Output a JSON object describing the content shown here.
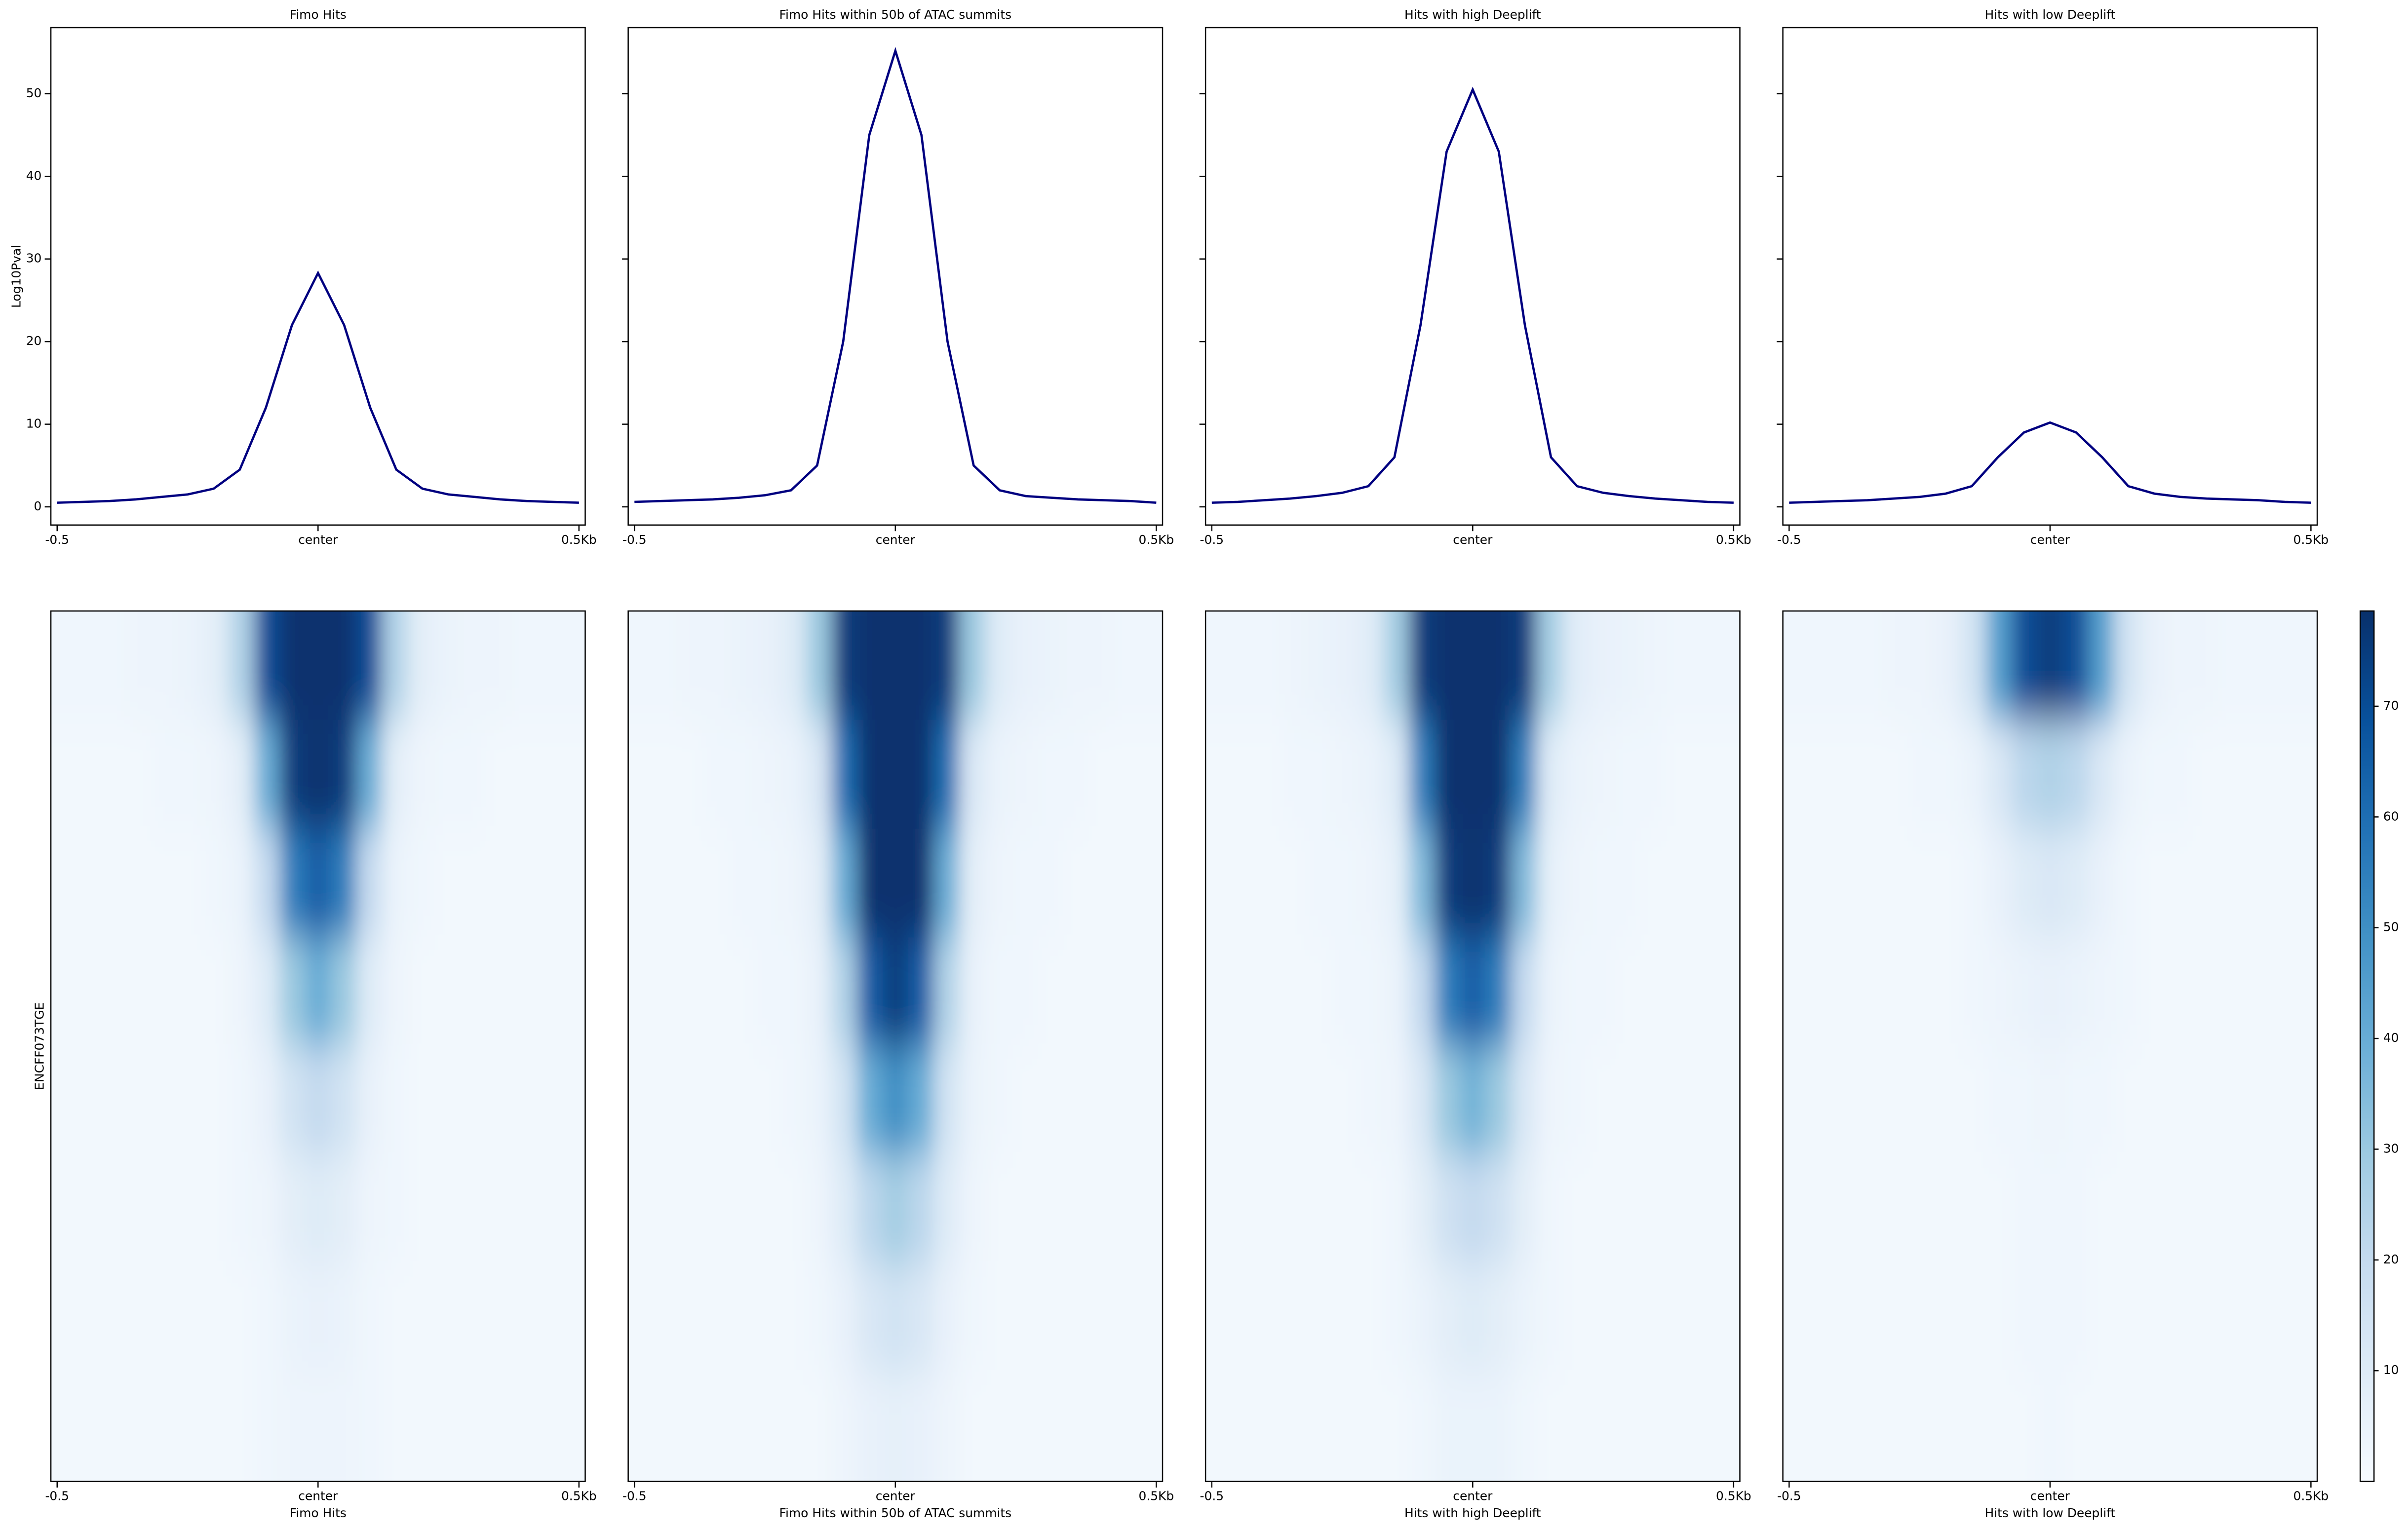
{
  "chart_data": [
    {
      "type": "line",
      "title": "Fimo Hits",
      "ylabel": "Log10Pval",
      "color": "#000080",
      "x": [
        -500,
        -450,
        -400,
        -350,
        -300,
        -250,
        -200,
        -150,
        -100,
        -50,
        0,
        50,
        100,
        150,
        200,
        250,
        300,
        350,
        400,
        450,
        500
      ],
      "values": [
        0.5,
        0.6,
        0.7,
        0.9,
        1.2,
        1.5,
        2.2,
        4.5,
        12,
        22,
        28.3,
        22,
        12,
        4.5,
        2.2,
        1.5,
        1.2,
        0.9,
        0.7,
        0.6,
        0.5
      ],
      "xlim": [
        -512,
        512
      ],
      "xticks": [
        {
          "value": -500,
          "label": "-0.5"
        },
        {
          "value": 0,
          "label": "center"
        },
        {
          "value": 500,
          "label": "0.5Kb"
        }
      ],
      "ylim": [
        -2.2,
        58
      ],
      "yticks": [
        0,
        10,
        20,
        30,
        40,
        50
      ]
    },
    {
      "type": "line",
      "title": "Fimo Hits within 50b of ATAC summits",
      "color": "#000080",
      "x": [
        -500,
        -450,
        -400,
        -350,
        -300,
        -250,
        -200,
        -150,
        -100,
        -50,
        0,
        50,
        100,
        150,
        200,
        250,
        300,
        350,
        400,
        450,
        500
      ],
      "values": [
        0.6,
        0.7,
        0.8,
        0.9,
        1.1,
        1.4,
        2.0,
        5,
        20,
        45,
        55.2,
        45,
        20,
        5,
        2.0,
        1.3,
        1.1,
        0.9,
        0.8,
        0.7,
        0.5
      ],
      "xlim": [
        -512,
        512
      ],
      "xticks": [
        {
          "value": -500,
          "label": "-0.5"
        },
        {
          "value": 0,
          "label": "center"
        },
        {
          "value": 500,
          "label": "0.5Kb"
        }
      ],
      "ylim": [
        -2.2,
        58
      ],
      "yticks": [
        0,
        10,
        20,
        30,
        40,
        50
      ]
    },
    {
      "type": "line",
      "title": "Hits with high Deeplift",
      "color": "#000080",
      "x": [
        -500,
        -450,
        -400,
        -350,
        -300,
        -250,
        -200,
        -150,
        -100,
        -50,
        0,
        50,
        100,
        150,
        200,
        250,
        300,
        350,
        400,
        450,
        500
      ],
      "values": [
        0.5,
        0.6,
        0.8,
        1.0,
        1.3,
        1.7,
        2.5,
        6,
        22,
        43,
        50.5,
        43,
        22,
        6,
        2.5,
        1.7,
        1.3,
        1.0,
        0.8,
        0.6,
        0.5
      ],
      "xlim": [
        -512,
        512
      ],
      "xticks": [
        {
          "value": -500,
          "label": "-0.5"
        },
        {
          "value": 0,
          "label": "center"
        },
        {
          "value": 500,
          "label": "0.5Kb"
        }
      ],
      "ylim": [
        -2.2,
        58
      ],
      "yticks": [
        0,
        10,
        20,
        30,
        40,
        50
      ]
    },
    {
      "type": "line",
      "title": "Hits with low Deeplift",
      "color": "#000080",
      "x": [
        -500,
        -450,
        -400,
        -350,
        -300,
        -250,
        -200,
        -150,
        -100,
        -50,
        0,
        50,
        100,
        150,
        200,
        250,
        300,
        350,
        400,
        450,
        500
      ],
      "values": [
        0.5,
        0.6,
        0.7,
        0.8,
        1.0,
        1.2,
        1.6,
        2.5,
        6,
        9,
        10.2,
        9,
        6,
        2.5,
        1.6,
        1.2,
        1.0,
        0.9,
        0.8,
        0.6,
        0.5
      ],
      "xlim": [
        -512,
        512
      ],
      "xticks": [
        {
          "value": -500,
          "label": "-0.5"
        },
        {
          "value": 0,
          "label": "center"
        },
        {
          "value": 500,
          "label": "0.5Kb"
        }
      ],
      "ylim": [
        -2.2,
        58
      ],
      "yticks": [
        0,
        10,
        20,
        30,
        40,
        50
      ]
    },
    {
      "type": "heatmap",
      "xlabel": "Fimo Hits",
      "ylabel": "ENCFF073TGE",
      "x": [
        -500,
        -450,
        -400,
        -350,
        -300,
        -250,
        -200,
        -150,
        -100,
        -50,
        0,
        50,
        100,
        150,
        200,
        250,
        300,
        350,
        400,
        450,
        500
      ],
      "xlim": [
        -512,
        512
      ],
      "xticks": [
        {
          "value": -500,
          "label": "-0.5"
        },
        {
          "value": 0,
          "label": "center"
        },
        {
          "value": 500,
          "label": "0.5Kb"
        }
      ],
      "values": [
        [
          3,
          3,
          3,
          4,
          4,
          5,
          8,
          25,
          70,
          78,
          78,
          78,
          70,
          25,
          8,
          5,
          4,
          4,
          3,
          3,
          3
        ],
        [
          2,
          2,
          2,
          2,
          3,
          3,
          4,
          8,
          40,
          75,
          78,
          75,
          40,
          8,
          4,
          3,
          3,
          2,
          2,
          2,
          2
        ],
        [
          2,
          2,
          2,
          2,
          2,
          2,
          3,
          5,
          20,
          55,
          65,
          55,
          20,
          5,
          3,
          2,
          2,
          2,
          2,
          2,
          2
        ],
        [
          2,
          2,
          2,
          2,
          2,
          2,
          2,
          4,
          10,
          30,
          40,
          30,
          10,
          4,
          2,
          2,
          2,
          2,
          2,
          2,
          2
        ],
        [
          2,
          2,
          2,
          2,
          2,
          2,
          2,
          3,
          6,
          15,
          20,
          15,
          6,
          3,
          2,
          2,
          2,
          2,
          2,
          2,
          2
        ],
        [
          2,
          2,
          2,
          2,
          2,
          2,
          2,
          3,
          4,
          8,
          10,
          8,
          4,
          3,
          2,
          2,
          2,
          2,
          2,
          2,
          2
        ],
        [
          2,
          2,
          2,
          2,
          2,
          2,
          2,
          2,
          3,
          5,
          6,
          5,
          3,
          2,
          2,
          2,
          2,
          2,
          2,
          2,
          2
        ],
        [
          2,
          2,
          2,
          2,
          2,
          2,
          2,
          2,
          3,
          4,
          4,
          4,
          3,
          2,
          2,
          2,
          2,
          2,
          2,
          2,
          2
        ]
      ]
    },
    {
      "type": "heatmap",
      "xlabel": "Fimo Hits within 50b of ATAC summits",
      "x": [
        -500,
        -450,
        -400,
        -350,
        -300,
        -250,
        -200,
        -150,
        -100,
        -50,
        0,
        50,
        100,
        150,
        200,
        250,
        300,
        350,
        400,
        450,
        500
      ],
      "xlim": [
        -512,
        512
      ],
      "xticks": [
        {
          "value": -500,
          "label": "-0.5"
        },
        {
          "value": 0,
          "label": "center"
        },
        {
          "value": 500,
          "label": "0.5Kb"
        }
      ],
      "values": [
        [
          3,
          3,
          4,
          4,
          5,
          6,
          10,
          30,
          75,
          78,
          78,
          78,
          75,
          30,
          10,
          6,
          5,
          4,
          4,
          3,
          3
        ],
        [
          2,
          2,
          2,
          3,
          3,
          4,
          5,
          12,
          60,
          78,
          78,
          78,
          60,
          12,
          5,
          4,
          3,
          3,
          2,
          2,
          2
        ],
        [
          2,
          2,
          2,
          2,
          3,
          3,
          4,
          8,
          40,
          78,
          78,
          78,
          40,
          8,
          4,
          3,
          3,
          2,
          2,
          2,
          2
        ],
        [
          2,
          2,
          2,
          2,
          2,
          3,
          3,
          6,
          25,
          65,
          75,
          65,
          25,
          6,
          3,
          3,
          2,
          2,
          2,
          2,
          2
        ],
        [
          2,
          2,
          2,
          2,
          2,
          2,
          3,
          5,
          15,
          40,
          50,
          40,
          15,
          5,
          3,
          2,
          2,
          2,
          2,
          2,
          2
        ],
        [
          2,
          2,
          2,
          2,
          2,
          2,
          2,
          4,
          10,
          22,
          28,
          22,
          10,
          4,
          2,
          2,
          2,
          2,
          2,
          2,
          2
        ],
        [
          2,
          2,
          2,
          2,
          2,
          2,
          2,
          3,
          6,
          12,
          15,
          12,
          6,
          3,
          2,
          2,
          2,
          2,
          2,
          2,
          2
        ],
        [
          2,
          2,
          2,
          2,
          2,
          2,
          2,
          2,
          4,
          6,
          7,
          6,
          4,
          2,
          2,
          2,
          2,
          2,
          2,
          2,
          2
        ]
      ]
    },
    {
      "type": "heatmap",
      "xlabel": "Hits with high Deeplift",
      "x": [
        -500,
        -450,
        -400,
        -350,
        -300,
        -250,
        -200,
        -150,
        -100,
        -50,
        0,
        50,
        100,
        150,
        200,
        250,
        300,
        350,
        400,
        450,
        500
      ],
      "xlim": [
        -512,
        512
      ],
      "xticks": [
        {
          "value": -500,
          "label": "-0.5"
        },
        {
          "value": 0,
          "label": "center"
        },
        {
          "value": 500,
          "label": "0.5Kb"
        }
      ],
      "values": [
        [
          3,
          3,
          3,
          4,
          5,
          6,
          9,
          28,
          75,
          78,
          78,
          78,
          75,
          28,
          9,
          6,
          5,
          4,
          3,
          3,
          3
        ],
        [
          2,
          2,
          2,
          3,
          3,
          4,
          5,
          10,
          55,
          78,
          78,
          78,
          55,
          10,
          5,
          4,
          3,
          3,
          2,
          2,
          2
        ],
        [
          2,
          2,
          2,
          2,
          3,
          3,
          4,
          7,
          35,
          75,
          78,
          75,
          35,
          7,
          4,
          3,
          3,
          2,
          2,
          2,
          2
        ],
        [
          2,
          2,
          2,
          2,
          2,
          3,
          3,
          5,
          20,
          55,
          65,
          55,
          20,
          5,
          3,
          3,
          2,
          2,
          2,
          2,
          2
        ],
        [
          2,
          2,
          2,
          2,
          2,
          2,
          3,
          4,
          12,
          30,
          38,
          30,
          12,
          4,
          3,
          2,
          2,
          2,
          2,
          2,
          2
        ],
        [
          2,
          2,
          2,
          2,
          2,
          2,
          2,
          3,
          8,
          16,
          20,
          16,
          8,
          3,
          2,
          2,
          2,
          2,
          2,
          2,
          2
        ],
        [
          2,
          2,
          2,
          2,
          2,
          2,
          2,
          3,
          5,
          8,
          10,
          8,
          5,
          3,
          2,
          2,
          2,
          2,
          2,
          2,
          2
        ],
        [
          2,
          2,
          2,
          2,
          2,
          2,
          2,
          2,
          3,
          5,
          5,
          5,
          3,
          2,
          2,
          2,
          2,
          2,
          2,
          2,
          2
        ]
      ]
    },
    {
      "type": "heatmap",
      "xlabel": "Hits with low Deeplift",
      "x": [
        -500,
        -450,
        -400,
        -350,
        -300,
        -250,
        -200,
        -150,
        -100,
        -50,
        0,
        50,
        100,
        150,
        200,
        250,
        300,
        350,
        400,
        450,
        500
      ],
      "xlim": [
        -512,
        512
      ],
      "xticks": [
        {
          "value": -500,
          "label": "-0.5"
        },
        {
          "value": 0,
          "label": "center"
        },
        {
          "value": 500,
          "label": "0.5Kb"
        }
      ],
      "values": [
        [
          3,
          3,
          3,
          3,
          4,
          4,
          6,
          15,
          45,
          70,
          75,
          70,
          45,
          15,
          6,
          4,
          4,
          3,
          3,
          3,
          3
        ],
        [
          2,
          2,
          2,
          2,
          2,
          3,
          3,
          5,
          12,
          22,
          25,
          22,
          12,
          5,
          3,
          3,
          2,
          2,
          2,
          2,
          2
        ],
        [
          2,
          2,
          2,
          2,
          2,
          2,
          2,
          3,
          6,
          10,
          12,
          10,
          6,
          3,
          2,
          2,
          2,
          2,
          2,
          2,
          2
        ],
        [
          2,
          2,
          2,
          2,
          2,
          2,
          2,
          3,
          4,
          5,
          6,
          5,
          4,
          3,
          2,
          2,
          2,
          2,
          2,
          2,
          2
        ],
        [
          2,
          2,
          2,
          2,
          2,
          2,
          2,
          2,
          3,
          3,
          4,
          3,
          3,
          2,
          2,
          2,
          2,
          2,
          2,
          2,
          2
        ],
        [
          2,
          2,
          2,
          2,
          2,
          2,
          2,
          2,
          2,
          3,
          3,
          3,
          2,
          2,
          2,
          2,
          2,
          2,
          2,
          2,
          2
        ],
        [
          2,
          2,
          2,
          2,
          2,
          2,
          2,
          2,
          2,
          3,
          3,
          3,
          2,
          2,
          2,
          2,
          2,
          2,
          2,
          2,
          2
        ],
        [
          2,
          2,
          2,
          2,
          2,
          2,
          2,
          2,
          2,
          2,
          3,
          2,
          2,
          2,
          2,
          2,
          2,
          2,
          2,
          2,
          2
        ]
      ]
    },
    {
      "type": "colorbar",
      "lim": [
        0,
        78.6
      ],
      "ticks": [
        10,
        20,
        30,
        40,
        50,
        60,
        70
      ],
      "colors": [
        "#f7fbff",
        "#deebf7",
        "#c6dbef",
        "#9ecae1",
        "#6baed6",
        "#4292c6",
        "#2171b5",
        "#08519c",
        "#08306b"
      ]
    }
  ]
}
